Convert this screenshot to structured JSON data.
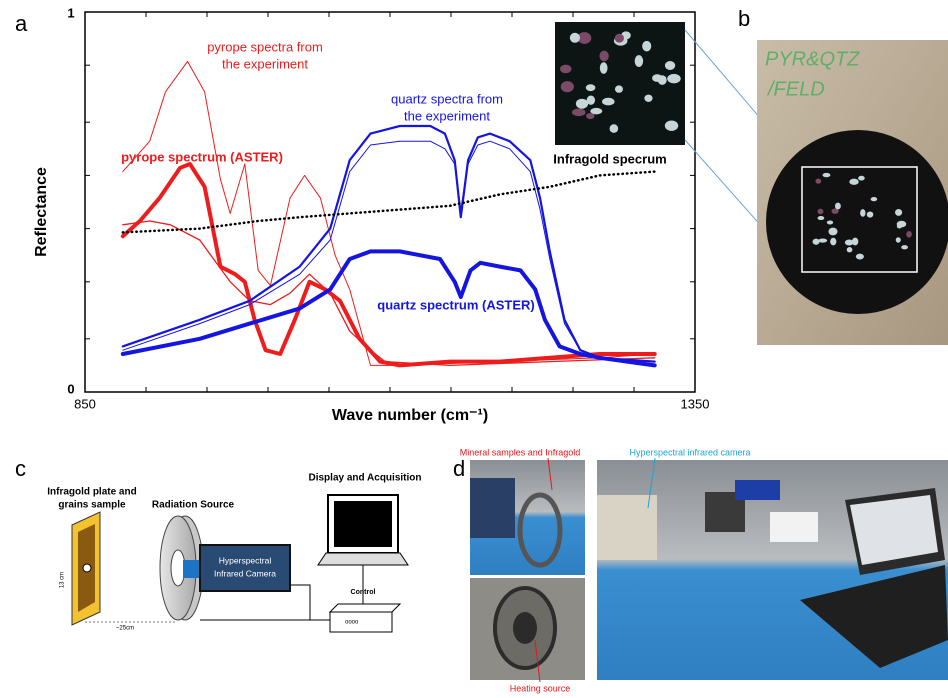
{
  "panel_labels": [
    "a",
    "b",
    "c",
    "d"
  ],
  "chart_data": {
    "type": "line",
    "ylabel": "Reflectance",
    "xlabel": "Wave number (cm⁻¹)",
    "xlim": [
      850,
      1350
    ],
    "xticks": [
      850,
      1350
    ],
    "xminorticks": [
      900,
      950,
      1000,
      1050,
      1100,
      1150,
      1200,
      1250,
      1300
    ],
    "ylim": [
      0,
      1
    ],
    "yticks": [
      0,
      1
    ],
    "yminorticks": [
      0.14,
      0.29,
      0.43,
      0.57,
      0.71,
      0.86
    ],
    "series": [
      {
        "color": "#ee1c1c",
        "width": 1,
        "x": [
          881,
          903,
          916,
          934,
          948,
          961,
          969,
          981,
          992,
          1002,
          1018,
          1030,
          1043,
          1055,
          1067,
          1084,
          1108,
          1190,
          1272,
          1317
        ],
        "values": [
          0.58,
          0.66,
          0.79,
          0.87,
          0.79,
          0.56,
          0.47,
          0.6,
          0.32,
          0.28,
          0.51,
          0.57,
          0.51,
          0.36,
          0.27,
          0.07,
          0.07,
          0.08,
          0.09,
          0.1
        ]
      },
      {
        "color": "#ee1c1c",
        "width": 1.3,
        "x": [
          881,
          903,
          920,
          944,
          969,
          985,
          1002,
          1018,
          1034,
          1051,
          1067,
          1084,
          1096,
          1149,
          1231,
          1317
        ],
        "values": [
          0.44,
          0.45,
          0.44,
          0.4,
          0.29,
          0.24,
          0.23,
          0.26,
          0.31,
          0.26,
          0.16,
          0.11,
          0.08,
          0.07,
          0.08,
          0.09
        ]
      },
      {
        "color": "#ee1c1c",
        "width": 4,
        "x": [
          881,
          895,
          911,
          928,
          936,
          948,
          961,
          973,
          981,
          989,
          998,
          1010,
          1022,
          1034,
          1047,
          1059,
          1075,
          1092,
          1108,
          1149,
          1190,
          1231,
          1272,
          1317
        ],
        "values": [
          0.41,
          0.45,
          0.51,
          0.59,
          0.6,
          0.54,
          0.33,
          0.31,
          0.29,
          0.19,
          0.11,
          0.1,
          0.19,
          0.29,
          0.27,
          0.24,
          0.14,
          0.08,
          0.07,
          0.08,
          0.08,
          0.09,
          0.1,
          0.1
        ]
      },
      {
        "color": "#1515e0",
        "width": 4,
        "x": [
          881,
          944,
          985,
          1026,
          1051,
          1067,
          1084,
          1108,
          1141,
          1153,
          1158,
          1166,
          1174,
          1190,
          1207,
          1219,
          1227,
          1239,
          1256,
          1272,
          1317
        ],
        "values": [
          0.1,
          0.14,
          0.18,
          0.22,
          0.27,
          0.35,
          0.37,
          0.37,
          0.35,
          0.29,
          0.25,
          0.32,
          0.34,
          0.33,
          0.32,
          0.27,
          0.19,
          0.12,
          0.1,
          0.09,
          0.07
        ]
      },
      {
        "color": "#1515e0",
        "width": 2.2,
        "x": [
          881,
          944,
          985,
          1026,
          1051,
          1067,
          1084,
          1108,
          1133,
          1145,
          1153,
          1158,
          1164,
          1172,
          1182,
          1198,
          1215,
          1223,
          1231,
          1243,
          1256,
          1272,
          1317
        ],
        "values": [
          0.12,
          0.19,
          0.24,
          0.33,
          0.43,
          0.61,
          0.68,
          0.7,
          0.7,
          0.68,
          0.61,
          0.46,
          0.61,
          0.67,
          0.68,
          0.66,
          0.61,
          0.51,
          0.37,
          0.19,
          0.11,
          0.09,
          0.08
        ]
      },
      {
        "color": "#1515e0",
        "width": 1,
        "x": [
          881,
          944,
          985,
          1026,
          1051,
          1067,
          1084,
          1108,
          1133,
          1145,
          1153,
          1158,
          1164,
          1172,
          1182,
          1198,
          1215,
          1223,
          1231,
          1243,
          1256,
          1272,
          1317
        ],
        "values": [
          0.11,
          0.18,
          0.23,
          0.31,
          0.4,
          0.58,
          0.65,
          0.66,
          0.66,
          0.64,
          0.6,
          0.48,
          0.6,
          0.65,
          0.66,
          0.64,
          0.58,
          0.48,
          0.35,
          0.18,
          0.11,
          0.09,
          0.08
        ]
      },
      {
        "color": "#000000",
        "width": 2.5,
        "style": "dotted",
        "x": [
          881,
          944,
          992,
          1026,
          1067,
          1108,
          1149,
          1190,
          1231,
          1272,
          1317
        ],
        "values": [
          0.42,
          0.43,
          0.45,
          0.46,
          0.47,
          0.48,
          0.49,
          0.52,
          0.54,
          0.57,
          0.58
        ]
      }
    ],
    "annotations": [
      {
        "lines": [
          "pyrope spectra from",
          "the experiment"
        ],
        "color": "#ee1c1c",
        "bold": false
      },
      {
        "lines": [
          "quartz spectra from",
          "the experiment"
        ],
        "color": "#1515e0",
        "bold": false
      },
      {
        "lines": [
          "pyrope spectrum (ASTER)"
        ],
        "color": "#ee1c1c",
        "bold": true
      },
      {
        "lines": [
          "quartz spectrum (ASTER)"
        ],
        "color": "#1515e0",
        "bold": true
      },
      {
        "lines": [
          "Infragold specrum"
        ],
        "color": "#000000",
        "bold": true
      }
    ]
  },
  "panel_b": {
    "handwriting": [
      "PYR&QTZ",
      "/FELD"
    ]
  },
  "panel_c": {
    "sample_label": [
      "Infragold plate and",
      "grains sample"
    ],
    "source_label": "Radiation Source",
    "display_label": "Display and Acquisition",
    "camera_label": [
      "Hyperspectral",
      "Infrared Camera"
    ],
    "control_label": "Control",
    "height_label": "13 cm",
    "distance_label": "~25cm"
  },
  "panel_d": {
    "callouts": [
      "Mineral samples and Infragold",
      "Hyperspectral infrared camera",
      "Heating source"
    ]
  }
}
